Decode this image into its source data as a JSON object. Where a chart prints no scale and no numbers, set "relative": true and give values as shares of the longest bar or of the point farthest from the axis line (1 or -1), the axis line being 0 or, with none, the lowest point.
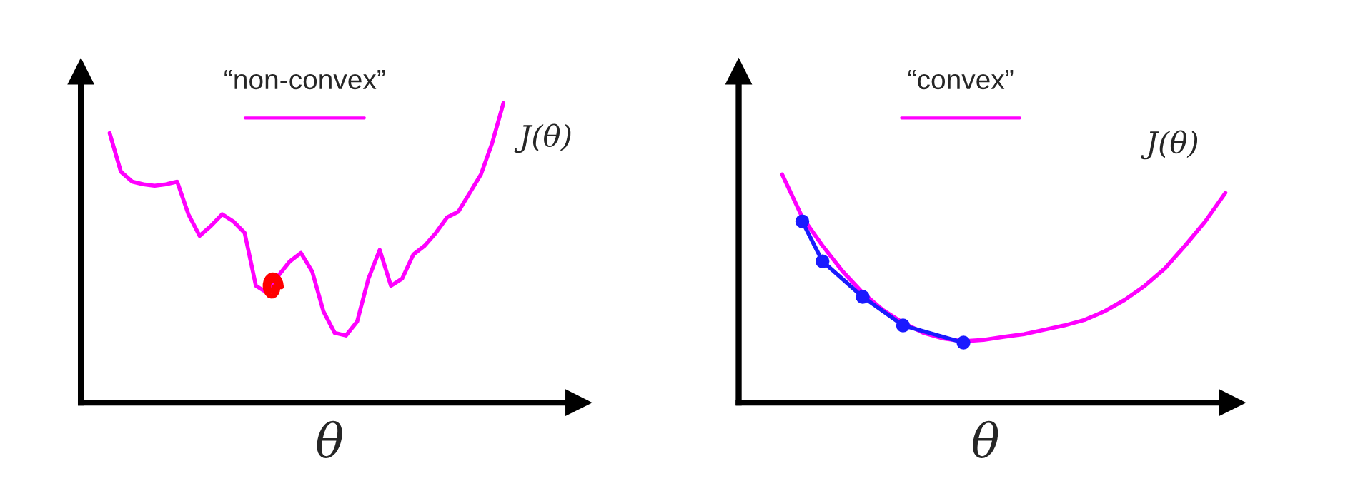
{
  "chart_data": [
    {
      "type": "line",
      "title": "“non-convex”",
      "xlabel": "θ",
      "relative": true,
      "legend": false,
      "grid": false,
      "tick_labels": false,
      "categories": [
        null,
        null,
        null,
        null,
        null,
        null,
        null,
        null,
        null,
        null,
        null,
        null,
        null,
        null,
        null,
        null,
        null,
        null,
        null,
        null,
        null,
        null,
        null,
        null,
        null,
        null,
        null,
        null,
        null,
        null,
        null,
        null,
        null,
        null,
        null,
        null
      ],
      "series": [
        {
          "name": "J(θ)",
          "color": "#ff00ff",
          "marker": "none",
          "values": [
            0.9,
            0.771,
            0.738,
            0.729,
            0.724,
            0.729,
            0.738,
            0.629,
            0.557,
            0.59,
            0.629,
            0.605,
            0.567,
            0.39,
            0.367,
            0.424,
            0.471,
            0.5,
            0.438,
            0.305,
            0.233,
            0.224,
            0.271,
            0.414,
            0.51,
            0.39,
            0.414,
            0.495,
            0.524,
            0.567,
            0.619,
            0.638,
            0.7,
            0.762,
            0.867,
            1
          ]
        }
      ]
    },
    {
      "type": "line",
      "title": "“convex”",
      "xlabel": "θ",
      "relative": true,
      "legend": false,
      "grid": false,
      "tick_labels": false,
      "categories": [
        null,
        null,
        null,
        null,
        null,
        null,
        null,
        null,
        null,
        null,
        null,
        null,
        null,
        null,
        null,
        null,
        null,
        null,
        null,
        null,
        null,
        null,
        null
      ],
      "series": [
        {
          "name": "J(θ)",
          "color": "#ff00ff",
          "marker": "none",
          "values": [
            1,
            0.812,
            0.688,
            0.575,
            0.481,
            0.406,
            0.35,
            0.306,
            0.281,
            0.269,
            0.275,
            0.288,
            0.3,
            0.319,
            0.338,
            0.362,
            0.4,
            0.45,
            0.512,
            0.588,
            0.688,
            0.794,
            0.919
          ]
        },
        {
          "color": "#1a1aff",
          "marker": "circle",
          "values": [
            null,
            0.794,
            0.619,
            null,
            0.463,
            null,
            0.338,
            null,
            null,
            0.263,
            null,
            null,
            null,
            null,
            null,
            null,
            null,
            null,
            null,
            null,
            null,
            null,
            null
          ]
        }
      ]
    }
  ]
}
